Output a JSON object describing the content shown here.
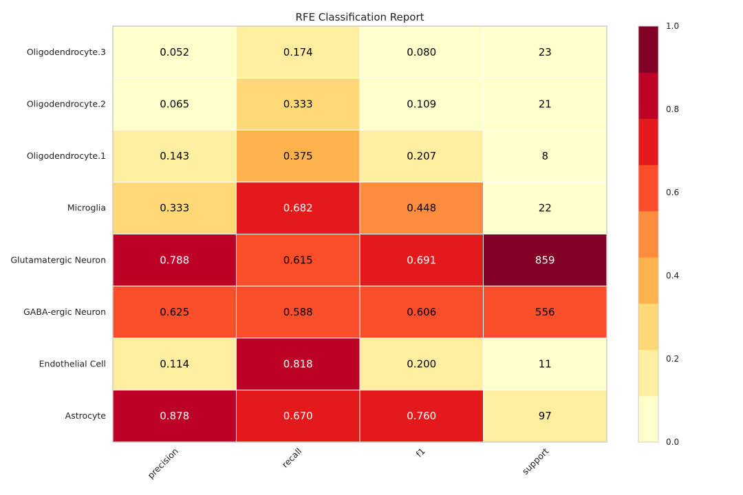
{
  "chart_data": {
    "type": "heatmap",
    "title": "RFE Classification Report",
    "rows": [
      "Oligodendrocyte.3",
      "Oligodendrocyte.2",
      "Oligodendrocyte.1",
      "Microglia",
      "Glutamatergic Neuron",
      "GABA-ergic Neuron",
      "Endothelial Cell",
      "Astrocyte"
    ],
    "columns": [
      "precision",
      "recall",
      "f1",
      "support"
    ],
    "values": [
      [
        0.052,
        0.174,
        0.08,
        23
      ],
      [
        0.065,
        0.333,
        0.109,
        21
      ],
      [
        0.143,
        0.375,
        0.207,
        8
      ],
      [
        0.333,
        0.682,
        0.448,
        22
      ],
      [
        0.788,
        0.615,
        0.691,
        859
      ],
      [
        0.625,
        0.588,
        0.606,
        556
      ],
      [
        0.114,
        0.818,
        0.2,
        11
      ],
      [
        0.878,
        0.67,
        0.76,
        97
      ]
    ],
    "value_labels": [
      [
        "0.052",
        "0.174",
        "0.080",
        "23"
      ],
      [
        "0.065",
        "0.333",
        "0.109",
        "21"
      ],
      [
        "0.143",
        "0.375",
        "0.207",
        "8"
      ],
      [
        "0.333",
        "0.682",
        "0.448",
        "22"
      ],
      [
        "0.788",
        "0.615",
        "0.691",
        "859"
      ],
      [
        "0.625",
        "0.588",
        "0.606",
        "556"
      ],
      [
        "0.114",
        "0.818",
        "0.200",
        "11"
      ],
      [
        "0.878",
        "0.670",
        "0.760",
        "97"
      ]
    ],
    "colorbar": {
      "range": [
        0.0,
        1.0
      ],
      "ticks": [
        "0.0",
        "0.2",
        "0.4",
        "0.6",
        "0.8",
        "1.0"
      ],
      "colors": [
        "#ffffcc",
        "#ffeda0",
        "#fed976",
        "#feb24c",
        "#fd8d3c",
        "#fc4e2a",
        "#e31a1c",
        "#bd0026",
        "#800026"
      ]
    },
    "grid": false
  }
}
